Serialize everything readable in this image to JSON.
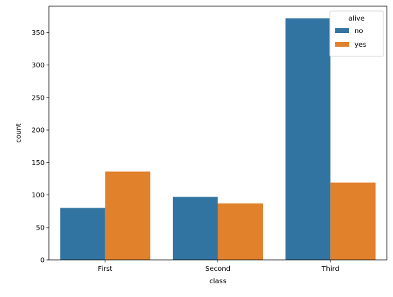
{
  "chart_data": {
    "type": "bar",
    "title": "",
    "xlabel": "class",
    "ylabel": "count",
    "categories": [
      "First",
      "Second",
      "Third"
    ],
    "series": [
      {
        "name": "no",
        "color": "#3274a1",
        "values": [
          80,
          97,
          372
        ]
      },
      {
        "name": "yes",
        "color": "#e1812c",
        "values": [
          136,
          87,
          119
        ]
      }
    ],
    "ylim": [
      0,
      390.6
    ],
    "yticks": [
      0,
      50,
      100,
      150,
      200,
      250,
      300,
      350
    ],
    "grid": false,
    "legend": {
      "title": "alive",
      "placement": "top-right"
    }
  }
}
